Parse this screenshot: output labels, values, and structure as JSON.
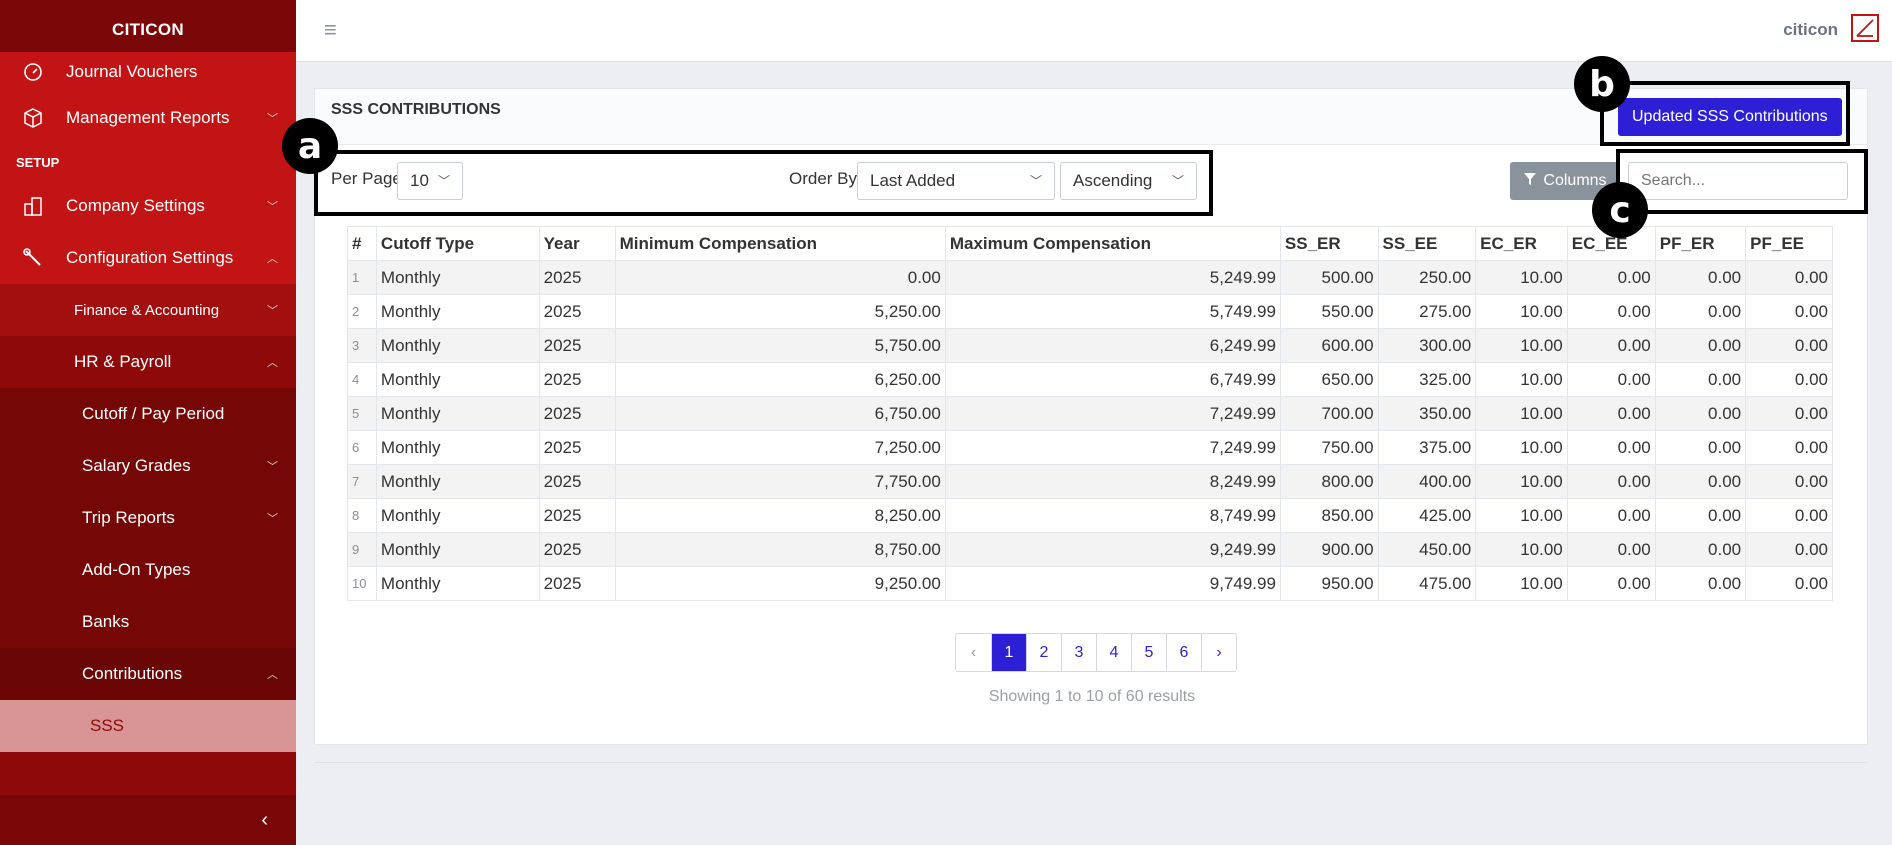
{
  "sidebar": {
    "brand": "CITICON",
    "items": [
      {
        "label": "Journal Vouchers",
        "icon": "dashboard-icon"
      },
      {
        "label": "Management Reports",
        "icon": "cube-icon"
      }
    ],
    "section": "SETUP",
    "setup_items": [
      {
        "label": "Company Settings",
        "icon": "building-icon"
      },
      {
        "label": "Configuration Settings",
        "icon": "wrench-icon"
      }
    ],
    "config_children": {
      "finance": "Finance & Accounting",
      "hr": "HR & Payroll"
    },
    "hr_children": [
      "Cutoff / Pay Period",
      "Salary Grades",
      "Trip Reports",
      "Add-On Types",
      "Banks",
      "Contributions"
    ],
    "active": "SSS"
  },
  "topbar": {
    "user": "citicon"
  },
  "card": {
    "title": "SSS CONTRIBUTIONS",
    "update_button": "Updated SSS Contributions",
    "per_page_label": "Per Page",
    "per_page_value": "10",
    "order_by_label": "Order By",
    "order_by_value": "Last Added",
    "direction_value": "Ascending",
    "columns_button": "Columns",
    "search_placeholder": "Search..."
  },
  "table": {
    "headers": [
      "#",
      "Cutoff Type",
      "Year",
      "Minimum Compensation",
      "Maximum Compensation",
      "SS_ER",
      "SS_EE",
      "EC_ER",
      "EC_EE",
      "PF_ER",
      "PF_EE"
    ],
    "rows": [
      [
        "1",
        "Monthly",
        "2025",
        "0.00",
        "5,249.99",
        "500.00",
        "250.00",
        "10.00",
        "0.00",
        "0.00",
        "0.00"
      ],
      [
        "2",
        "Monthly",
        "2025",
        "5,250.00",
        "5,749.99",
        "550.00",
        "275.00",
        "10.00",
        "0.00",
        "0.00",
        "0.00"
      ],
      [
        "3",
        "Monthly",
        "2025",
        "5,750.00",
        "6,249.99",
        "600.00",
        "300.00",
        "10.00",
        "0.00",
        "0.00",
        "0.00"
      ],
      [
        "4",
        "Monthly",
        "2025",
        "6,250.00",
        "6,749.99",
        "650.00",
        "325.00",
        "10.00",
        "0.00",
        "0.00",
        "0.00"
      ],
      [
        "5",
        "Monthly",
        "2025",
        "6,750.00",
        "7,249.99",
        "700.00",
        "350.00",
        "10.00",
        "0.00",
        "0.00",
        "0.00"
      ],
      [
        "6",
        "Monthly",
        "2025",
        "7,250.00",
        "7,249.99",
        "750.00",
        "375.00",
        "10.00",
        "0.00",
        "0.00",
        "0.00"
      ],
      [
        "7",
        "Monthly",
        "2025",
        "7,750.00",
        "8,249.99",
        "800.00",
        "400.00",
        "10.00",
        "0.00",
        "0.00",
        "0.00"
      ],
      [
        "8",
        "Monthly",
        "2025",
        "8,250.00",
        "8,749.99",
        "850.00",
        "425.00",
        "10.00",
        "0.00",
        "0.00",
        "0.00"
      ],
      [
        "9",
        "Monthly",
        "2025",
        "8,750.00",
        "9,249.99",
        "900.00",
        "450.00",
        "10.00",
        "0.00",
        "0.00",
        "0.00"
      ],
      [
        "10",
        "Monthly",
        "2025",
        "9,250.00",
        "9,749.99",
        "950.00",
        "475.00",
        "10.00",
        "0.00",
        "0.00",
        "0.00"
      ]
    ]
  },
  "pagination": {
    "prev": "‹",
    "pages": [
      "1",
      "2",
      "3",
      "4",
      "5",
      "6"
    ],
    "next": "›",
    "current": "1",
    "summary": "Showing 1 to 10 of 60 results"
  },
  "annotations": {
    "a": "a",
    "b": "b",
    "c": "c"
  },
  "colors": {
    "sidebar": "#8e0a0a",
    "accent": "#2d1fd6",
    "active_item": "#d99595"
  }
}
